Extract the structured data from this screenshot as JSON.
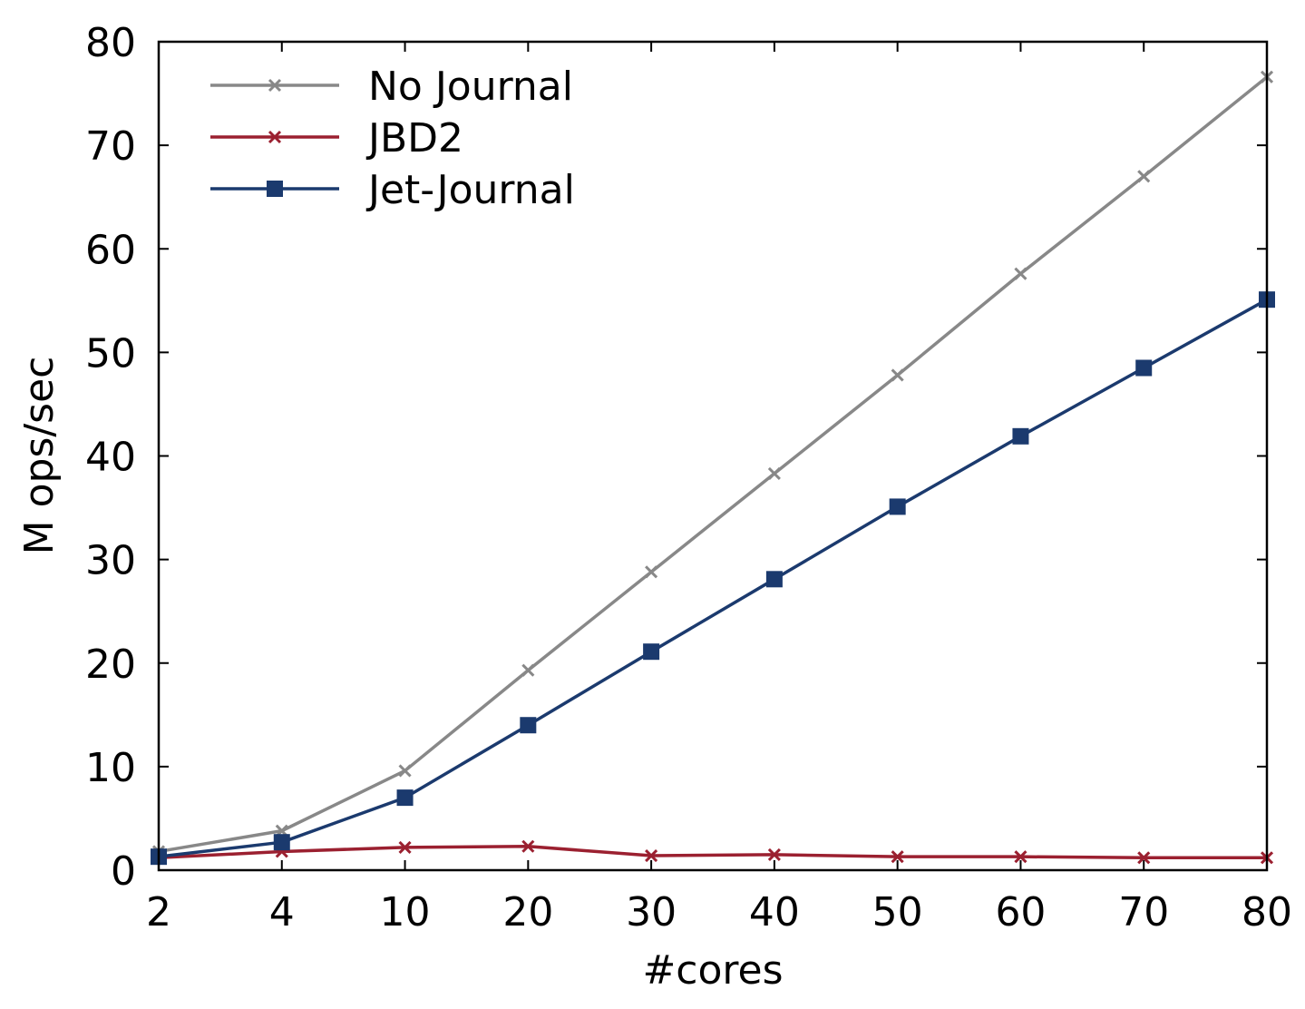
{
  "colors": {
    "no_journal": "#888888",
    "jbd2": "#9b2030",
    "jet_journal": "#1b3a6e",
    "axis": "#000000"
  },
  "chart_data": {
    "type": "line",
    "title": "",
    "xlabel": "#cores",
    "ylabel": "M ops/sec",
    "categories": [
      "2",
      "4",
      "10",
      "20",
      "30",
      "40",
      "50",
      "60",
      "70",
      "80"
    ],
    "ylim": [
      0,
      80
    ],
    "yticks": [
      0,
      10,
      20,
      30,
      40,
      50,
      60,
      70,
      80
    ],
    "grid": false,
    "legend_position": "top-left",
    "series": [
      {
        "name": "No Journal",
        "marker": "x",
        "color": "#888888",
        "values": [
          1.8,
          3.8,
          9.6,
          19.3,
          28.8,
          38.3,
          47.8,
          57.6,
          67.0,
          76.6
        ]
      },
      {
        "name": "JBD2",
        "marker": "x",
        "color": "#9b2030",
        "values": [
          1.2,
          1.8,
          2.2,
          2.3,
          1.4,
          1.5,
          1.3,
          1.3,
          1.2,
          1.2
        ]
      },
      {
        "name": "Jet-Journal",
        "marker": "square",
        "color": "#1b3a6e",
        "values": [
          1.3,
          2.7,
          7.0,
          14.0,
          21.1,
          28.1,
          35.1,
          41.9,
          48.5,
          55.1
        ]
      }
    ]
  }
}
